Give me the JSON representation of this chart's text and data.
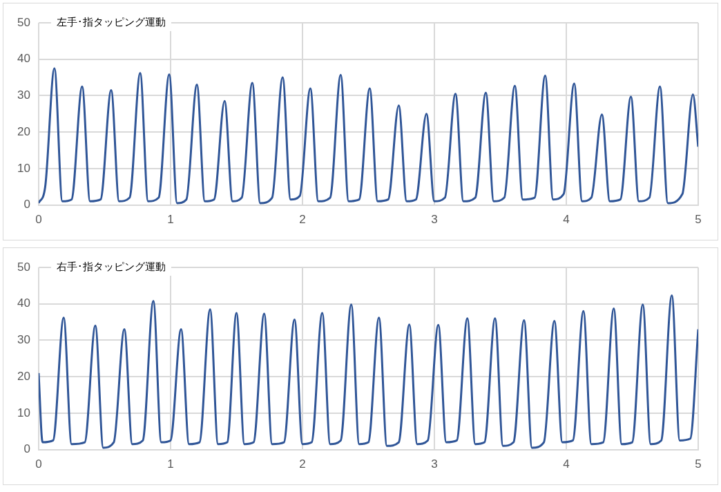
{
  "chart_data": [
    {
      "type": "line",
      "title": "左手･指タッピング運動",
      "grid": true,
      "xlim": [
        0,
        5
      ],
      "xticks": [
        0,
        1,
        2,
        3,
        4,
        5
      ],
      "ylim": [
        0,
        50
      ],
      "yticks": [
        0,
        10,
        20,
        30,
        40,
        50
      ],
      "x": [
        0,
        0.05,
        0.12,
        0.18,
        0.25,
        0.33,
        0.39,
        0.47,
        0.55,
        0.61,
        0.69,
        0.77,
        0.83,
        0.91,
        0.99,
        1.05,
        1.12,
        1.2,
        1.26,
        1.33,
        1.41,
        1.47,
        1.54,
        1.62,
        1.68,
        1.77,
        1.85,
        1.91,
        1.98,
        2.06,
        2.12,
        2.21,
        2.29,
        2.35,
        2.43,
        2.51,
        2.57,
        2.65,
        2.73,
        2.79,
        2.86,
        2.94,
        3.0,
        3.08,
        3.16,
        3.22,
        3.31,
        3.39,
        3.45,
        3.53,
        3.61,
        3.67,
        3.76,
        3.84,
        3.9,
        3.98,
        4.06,
        4.12,
        4.19,
        4.27,
        4.33,
        4.41,
        4.49,
        4.55,
        4.63,
        4.71,
        4.77,
        4.88,
        4.96,
        5
      ],
      "series": [
        {
          "color": "#2f5597",
          "values": [
            0.5,
            5,
            37.5,
            1,
            1.5,
            32.5,
            1,
            1.5,
            31.5,
            1,
            2,
            36.2,
            1,
            2,
            35.8,
            0.5,
            1.5,
            33,
            1,
            1.5,
            28.5,
            1,
            2,
            33.5,
            0.5,
            2,
            35,
            1.5,
            2.5,
            32,
            1,
            2,
            35.7,
            1,
            1.5,
            32,
            1,
            1.5,
            27.3,
            1,
            1.5,
            25,
            1,
            2,
            30.5,
            1,
            2,
            30.8,
            1,
            2,
            32.7,
            1.5,
            2,
            35.5,
            1.5,
            3,
            33.3,
            1,
            2,
            24.8,
            1,
            1.5,
            29.7,
            1,
            2,
            32.5,
            0.5,
            3,
            30.3,
            16
          ]
        }
      ]
    },
    {
      "type": "line",
      "title": "右手･指タッピング運動",
      "grid": true,
      "xlim": [
        0,
        5
      ],
      "xticks": [
        0,
        1,
        2,
        3,
        4,
        5
      ],
      "ylim": [
        0,
        50
      ],
      "yticks": [
        0,
        10,
        20,
        30,
        40,
        50
      ],
      "x": [
        0,
        0.03,
        0.11,
        0.19,
        0.25,
        0.35,
        0.43,
        0.49,
        0.57,
        0.65,
        0.71,
        0.79,
        0.87,
        0.93,
        1.0,
        1.08,
        1.14,
        1.22,
        1.3,
        1.36,
        1.43,
        1.5,
        1.56,
        1.63,
        1.71,
        1.77,
        1.86,
        1.94,
        2.0,
        2.07,
        2.15,
        2.21,
        2.29,
        2.37,
        2.43,
        2.5,
        2.58,
        2.64,
        2.73,
        2.81,
        2.87,
        2.95,
        3.03,
        3.09,
        3.17,
        3.25,
        3.31,
        3.38,
        3.46,
        3.52,
        3.6,
        3.68,
        3.74,
        3.83,
        3.91,
        3.97,
        4.05,
        4.13,
        4.19,
        4.28,
        4.36,
        4.42,
        4.5,
        4.58,
        4.64,
        4.72,
        4.8,
        4.86,
        4.94,
        5
      ],
      "series": [
        {
          "color": "#2f5597",
          "values": [
            21,
            2,
            2.5,
            36.2,
            1.5,
            2,
            34,
            0.5,
            2,
            33,
            1.5,
            2.5,
            40.8,
            2,
            2.5,
            33,
            1.5,
            2,
            38.5,
            1.5,
            2,
            37.5,
            1.5,
            2,
            37.3,
            1.5,
            2,
            35.7,
            1.5,
            2,
            37.5,
            1.5,
            2.5,
            39.8,
            1.5,
            2,
            36.2,
            1,
            2,
            34.3,
            1.5,
            2.5,
            34.2,
            2,
            2.5,
            36,
            1.5,
            2,
            36,
            1,
            2,
            35.5,
            0.5,
            2,
            35.3,
            2,
            2.5,
            38,
            1.5,
            2,
            38.7,
            1.5,
            2,
            39.8,
            1.5,
            2.5,
            42.3,
            2.5,
            3,
            33
          ]
        }
      ]
    }
  ]
}
